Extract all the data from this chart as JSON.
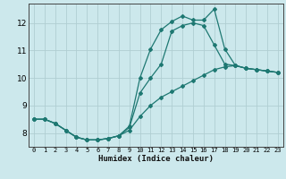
{
  "title": "",
  "xlabel": "Humidex (Indice chaleur)",
  "bg_color": "#cce8ec",
  "grid_color": "#b0ced2",
  "line_color": "#1e7872",
  "xlim": [
    -0.5,
    23.5
  ],
  "ylim": [
    7.5,
    12.7
  ],
  "xticks": [
    0,
    1,
    2,
    3,
    4,
    5,
    6,
    7,
    8,
    9,
    10,
    11,
    12,
    13,
    14,
    15,
    16,
    17,
    18,
    19,
    20,
    21,
    22,
    23
  ],
  "yticks": [
    8,
    9,
    10,
    11,
    12
  ],
  "line1_x": [
    0,
    1,
    2,
    3,
    4,
    5,
    6,
    7,
    8,
    9,
    10,
    11,
    12,
    13,
    14,
    15,
    16,
    17,
    18,
    19,
    20,
    21,
    22,
    23
  ],
  "line1_y": [
    8.5,
    8.5,
    8.35,
    8.1,
    7.85,
    7.75,
    7.75,
    7.8,
    7.9,
    8.1,
    8.6,
    9.0,
    9.3,
    9.5,
    9.7,
    9.9,
    10.1,
    10.3,
    10.4,
    10.45,
    10.35,
    10.3,
    10.25,
    10.2
  ],
  "line2_x": [
    0,
    1,
    2,
    3,
    4,
    5,
    6,
    7,
    8,
    9,
    10,
    11,
    12,
    13,
    14,
    15,
    16,
    17,
    18,
    19,
    20,
    21,
    22,
    23
  ],
  "line2_y": [
    8.5,
    8.5,
    8.35,
    8.1,
    7.85,
    7.75,
    7.75,
    7.8,
    7.9,
    8.25,
    10.0,
    11.05,
    11.75,
    12.05,
    12.25,
    12.1,
    12.1,
    12.5,
    11.05,
    10.45,
    10.35,
    10.3,
    10.25,
    10.2
  ],
  "line3_x": [
    0,
    1,
    2,
    3,
    4,
    5,
    6,
    7,
    8,
    9,
    10,
    11,
    12,
    13,
    14,
    15,
    16,
    17,
    18,
    19,
    20,
    21,
    22,
    23
  ],
  "line3_y": [
    8.5,
    8.5,
    8.35,
    8.1,
    7.85,
    7.75,
    7.75,
    7.8,
    7.9,
    8.2,
    9.45,
    10.0,
    10.5,
    11.7,
    11.9,
    12.0,
    11.9,
    11.2,
    10.5,
    10.45,
    10.35,
    10.3,
    10.25,
    10.2
  ]
}
